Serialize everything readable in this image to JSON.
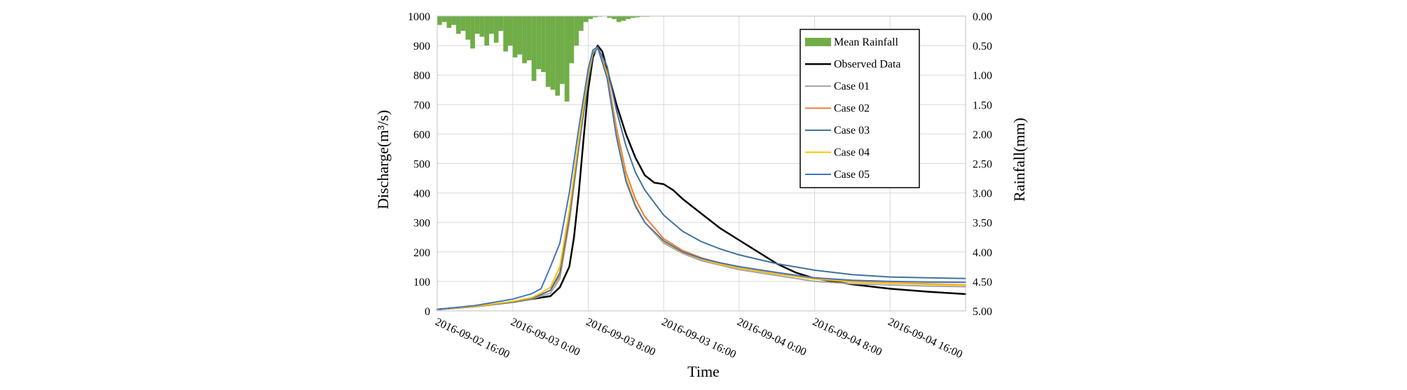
{
  "chart_data": {
    "type": "line",
    "title": "",
    "xlabel": "Time",
    "ylabel": "Discharge(m³/s)",
    "y2label": "Rainfall(mm)",
    "x_unit": "hours since 2016-09-02 16:00",
    "xlim": [
      0,
      56
    ],
    "ylim": [
      0,
      1000
    ],
    "y2lim": [
      5.0,
      0.0
    ],
    "y2_inverted": true,
    "grid": true,
    "legend_position": "top-right",
    "x_ticks": [
      {
        "x": 0,
        "label": "2016-09-02 16:00"
      },
      {
        "x": 8,
        "label": "2016-09-03 0:00"
      },
      {
        "x": 16,
        "label": "2016-09-03 8:00"
      },
      {
        "x": 24,
        "label": "2016-09-03 16:00"
      },
      {
        "x": 32,
        "label": "2016-09-04 0:00"
      },
      {
        "x": 40,
        "label": "2016-09-04 8:00"
      },
      {
        "x": 48,
        "label": "2016-09-04 16:00"
      }
    ],
    "y_ticks": [
      "0",
      "100",
      "200",
      "300",
      "400",
      "500",
      "600",
      "700",
      "800",
      "900",
      "1000"
    ],
    "y2_ticks": [
      "0.00",
      "0.50",
      "1.00",
      "1.50",
      "2.00",
      "2.50",
      "3.00",
      "3.50",
      "4.00",
      "4.50",
      "5.00"
    ],
    "rainfall": {
      "name": "Mean Rainfall",
      "color": "#70ad47",
      "x": [
        0,
        0.5,
        1,
        1.5,
        2,
        2.5,
        3,
        3.5,
        4,
        4.5,
        5,
        5.5,
        6,
        6.5,
        7,
        7.5,
        8,
        8.5,
        9,
        9.5,
        10,
        10.5,
        11,
        11.5,
        12,
        12.5,
        13,
        13.5,
        14,
        14.5,
        15,
        15.5,
        16,
        16.5,
        17,
        17.5,
        18,
        18.5,
        19,
        19.5,
        20,
        20.5,
        21,
        21.5,
        22
      ],
      "values": [
        0.15,
        0.1,
        0.2,
        0.15,
        0.3,
        0.25,
        0.4,
        0.55,
        0.3,
        0.35,
        0.5,
        0.3,
        0.45,
        0.25,
        0.6,
        0.5,
        0.7,
        0.65,
        0.8,
        0.75,
        1.1,
        0.9,
        0.95,
        1.2,
        1.25,
        1.35,
        1.15,
        1.45,
        0.8,
        0.5,
        0.25,
        0.1,
        0.05,
        0.02,
        0.01,
        0.0,
        0.03,
        0.05,
        0.1,
        0.08,
        0.05,
        0.03,
        0.02,
        0.01,
        0.01
      ]
    },
    "series": [
      {
        "name": "Observed Data",
        "color": "#000000",
        "width": 2.5,
        "x": [
          0,
          4,
          8,
          10,
          12,
          13,
          14,
          14.5,
          15,
          15.5,
          16,
          16.5,
          17,
          17.5,
          18,
          19,
          20,
          21,
          22,
          23,
          24,
          25,
          26,
          28,
          30,
          32,
          34,
          36,
          38,
          40,
          44,
          48,
          52,
          56
        ],
        "values": [
          5,
          15,
          30,
          40,
          50,
          80,
          150,
          250,
          400,
          580,
          750,
          860,
          900,
          880,
          820,
          700,
          600,
          520,
          460,
          435,
          430,
          410,
          380,
          330,
          280,
          240,
          200,
          160,
          130,
          110,
          90,
          75,
          65,
          57
        ]
      },
      {
        "name": "Case 01",
        "color": "#a5a5a5",
        "width": 2,
        "x": [
          0,
          4,
          8,
          10,
          11,
          12,
          13,
          14,
          15,
          16,
          16.5,
          17,
          18,
          19,
          20,
          21,
          22,
          24,
          26,
          28,
          30,
          32,
          36,
          40,
          44,
          48,
          52,
          56
        ],
        "values": [
          5,
          15,
          30,
          40,
          50,
          60,
          110,
          300,
          550,
          780,
          870,
          890,
          800,
          600,
          450,
          360,
          300,
          230,
          195,
          170,
          155,
          140,
          120,
          100,
          92,
          88,
          84,
          82
        ]
      },
      {
        "name": "Case 02",
        "color": "#ed7d31",
        "width": 2,
        "x": [
          0,
          4,
          8,
          10,
          11,
          12,
          13,
          14,
          15,
          16,
          16.5,
          17,
          18,
          19,
          20,
          21,
          22,
          24,
          26,
          28,
          30,
          32,
          36,
          40,
          44,
          48,
          52,
          56
        ],
        "values": [
          5,
          15,
          30,
          42,
          55,
          70,
          120,
          310,
          560,
          790,
          875,
          895,
          810,
          620,
          470,
          380,
          320,
          245,
          205,
          180,
          162,
          150,
          130,
          112,
          100,
          95,
          92,
          88
        ]
      },
      {
        "name": "Case 03",
        "color": "#41719c",
        "width": 2,
        "x": [
          0,
          4,
          8,
          10,
          11,
          12,
          13,
          14,
          15,
          16,
          16.5,
          17,
          18,
          19,
          20,
          21,
          22,
          24,
          26,
          28,
          30,
          32,
          36,
          40,
          44,
          48,
          52,
          56
        ],
        "values": [
          5,
          15,
          30,
          42,
          55,
          70,
          130,
          320,
          560,
          780,
          870,
          895,
          830,
          680,
          560,
          470,
          410,
          325,
          270,
          235,
          210,
          190,
          160,
          138,
          123,
          115,
          112,
          110
        ]
      },
      {
        "name": "Case 04",
        "color": "#ffc000",
        "width": 2,
        "x": [
          0,
          4,
          8,
          10,
          11,
          12,
          13,
          14,
          15,
          16,
          16.5,
          17,
          18,
          19,
          20,
          21,
          22,
          24,
          26,
          28,
          30,
          32,
          36,
          40,
          44,
          48,
          52,
          56
        ],
        "values": [
          5,
          15,
          32,
          45,
          60,
          80,
          150,
          340,
          580,
          800,
          880,
          895,
          800,
          600,
          450,
          360,
          300,
          235,
          198,
          175,
          158,
          145,
          125,
          108,
          98,
          94,
          90,
          87
        ]
      },
      {
        "name": "Case 05",
        "color": "#4472c4",
        "width": 2,
        "x": [
          0,
          4,
          8,
          10,
          11,
          12,
          12.5,
          13,
          14,
          15,
          16,
          16.5,
          17,
          18,
          19,
          20,
          21,
          22,
          24,
          26,
          28,
          30,
          32,
          36,
          40,
          44,
          48,
          52,
          56
        ],
        "values": [
          5,
          18,
          40,
          58,
          75,
          150,
          190,
          230,
          400,
          620,
          820,
          885,
          895,
          790,
          590,
          440,
          355,
          300,
          238,
          200,
          178,
          163,
          150,
          130,
          112,
          104,
          100,
          98,
          97
        ]
      }
    ]
  }
}
